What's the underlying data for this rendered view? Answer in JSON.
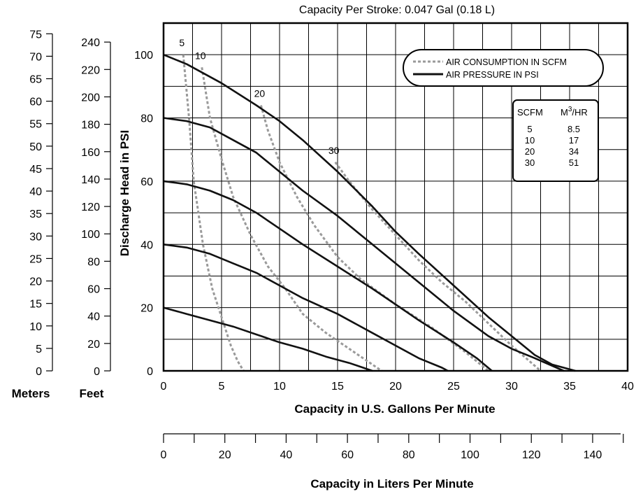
{
  "chart_data": {
    "type": "line",
    "title": "Capacity Per Stroke: 0.047 Gal (0.18 L)",
    "xlabel": "Capacity in U.S. Gallons Per Minute",
    "ylabel": "Discharge Head in PSI",
    "xlim": [
      0,
      40
    ],
    "ylim": [
      0,
      110
    ],
    "grid": true,
    "x_ticks": [
      0,
      5,
      10,
      15,
      20,
      25,
      30,
      35,
      40
    ],
    "y_ticks": [
      0,
      20,
      40,
      60,
      80,
      100
    ],
    "secondary_axes": {
      "meters": {
        "label": "Meters",
        "ticks": [
          0,
          5,
          10,
          15,
          20,
          25,
          30,
          35,
          40,
          45,
          50,
          55,
          60,
          65,
          70,
          75
        ],
        "psi_per_unit": 1.4216
      },
      "feet": {
        "label": "Feet",
        "ticks": [
          0,
          20,
          40,
          60,
          80,
          100,
          120,
          140,
          160,
          180,
          200,
          220,
          240
        ],
        "psi_per_unit": 0.4333
      },
      "liters": {
        "label": "Capacity in Liters Per Minute",
        "ticks": [
          0,
          20,
          40,
          60,
          80,
          100,
          120,
          140
        ],
        "gpm_per_unit": 0.26417
      }
    },
    "legend": {
      "placement": "top-right",
      "entries": [
        {
          "label": "AIR CONSUMPTION IN SCFM",
          "style": "dashed",
          "color": "#9a9a9a"
        },
        {
          "label": "AIR PRESSURE IN PSI",
          "style": "solid",
          "color": "#111111"
        }
      ]
    },
    "conversion_table": {
      "headers": [
        "SCFM",
        "M",
        "3",
        "/HR"
      ],
      "rows": [
        [
          "5",
          "8.5"
        ],
        [
          "10",
          "17"
        ],
        [
          "20",
          "34"
        ],
        [
          "30",
          "51"
        ]
      ]
    },
    "pressure_curves": [
      {
        "psi": 100,
        "points": [
          [
            0,
            100
          ],
          [
            2,
            97
          ],
          [
            5,
            91
          ],
          [
            8,
            84
          ],
          [
            10,
            79
          ],
          [
            12,
            73
          ],
          [
            15,
            63
          ],
          [
            18,
            52
          ],
          [
            20,
            44
          ],
          [
            22,
            37
          ],
          [
            25,
            27
          ],
          [
            28,
            17
          ],
          [
            30,
            11
          ],
          [
            32,
            5
          ],
          [
            33.5,
            2
          ],
          [
            35.5,
            0
          ]
        ]
      },
      {
        "psi": 80,
        "points": [
          [
            0,
            80
          ],
          [
            2,
            79
          ],
          [
            4,
            77
          ],
          [
            6,
            73
          ],
          [
            8,
            69
          ],
          [
            10,
            63
          ],
          [
            12,
            57
          ],
          [
            15,
            49
          ],
          [
            18,
            40
          ],
          [
            20,
            34
          ],
          [
            22,
            28
          ],
          [
            25,
            19
          ],
          [
            28,
            11
          ],
          [
            30,
            7
          ],
          [
            32,
            4
          ],
          [
            34.5,
            0
          ]
        ]
      },
      {
        "psi": 60,
        "points": [
          [
            0,
            60
          ],
          [
            2,
            59
          ],
          [
            4,
            57
          ],
          [
            6,
            54
          ],
          [
            8,
            50
          ],
          [
            10,
            45
          ],
          [
            12,
            40
          ],
          [
            15,
            33
          ],
          [
            18,
            26
          ],
          [
            20,
            21
          ],
          [
            22,
            16
          ],
          [
            25,
            9
          ],
          [
            27,
            4
          ],
          [
            28.3,
            0
          ]
        ]
      },
      {
        "psi": 40,
        "points": [
          [
            0,
            40
          ],
          [
            2,
            39
          ],
          [
            4,
            37
          ],
          [
            6,
            34
          ],
          [
            8,
            31
          ],
          [
            10,
            27
          ],
          [
            12,
            23
          ],
          [
            15,
            18
          ],
          [
            18,
            12
          ],
          [
            20,
            8
          ],
          [
            22,
            4
          ],
          [
            24,
            1
          ],
          [
            24.5,
            0
          ]
        ]
      },
      {
        "psi": 20,
        "points": [
          [
            0,
            20
          ],
          [
            2,
            18
          ],
          [
            4,
            16
          ],
          [
            6,
            14
          ],
          [
            8,
            11.5
          ],
          [
            10,
            9
          ],
          [
            12,
            7
          ],
          [
            14,
            4.5
          ],
          [
            16,
            2.5
          ],
          [
            18,
            0
          ]
        ]
      }
    ],
    "air_curves": [
      {
        "scfm": 5,
        "label": "5",
        "points": [
          [
            1.7,
            100
          ],
          [
            2.2,
            80
          ],
          [
            2.6,
            60
          ],
          [
            3.4,
            40
          ],
          [
            4.2,
            26
          ],
          [
            5,
            17
          ],
          [
            5.8,
            8
          ],
          [
            6.4,
            3
          ],
          [
            6.9,
            0
          ]
        ]
      },
      {
        "scfm": 10,
        "label": "10",
        "points": [
          [
            3.3,
            96
          ],
          [
            4,
            80
          ],
          [
            5,
            67
          ],
          [
            6,
            55
          ],
          [
            7.5,
            43
          ],
          [
            9,
            33
          ],
          [
            10.5,
            26
          ],
          [
            12,
            18
          ],
          [
            14,
            12
          ],
          [
            16,
            7
          ],
          [
            18.8,
            0
          ]
        ]
      },
      {
        "scfm": 20,
        "label": "20",
        "points": [
          [
            8.4,
            84
          ],
          [
            9,
            76
          ],
          [
            10,
            66
          ],
          [
            11.5,
            55
          ],
          [
            13,
            46
          ],
          [
            15,
            36
          ],
          [
            17,
            29
          ],
          [
            20,
            21
          ],
          [
            23,
            14
          ],
          [
            26,
            6
          ],
          [
            28,
            0
          ]
        ]
      },
      {
        "scfm": 30,
        "label": "30",
        "points": [
          [
            14.8,
            66
          ],
          [
            16,
            60
          ],
          [
            18,
            51
          ],
          [
            20,
            43
          ],
          [
            22,
            35
          ],
          [
            24,
            28
          ],
          [
            26,
            22
          ],
          [
            28,
            15
          ],
          [
            30,
            8
          ],
          [
            32.5,
            0
          ]
        ]
      }
    ]
  }
}
